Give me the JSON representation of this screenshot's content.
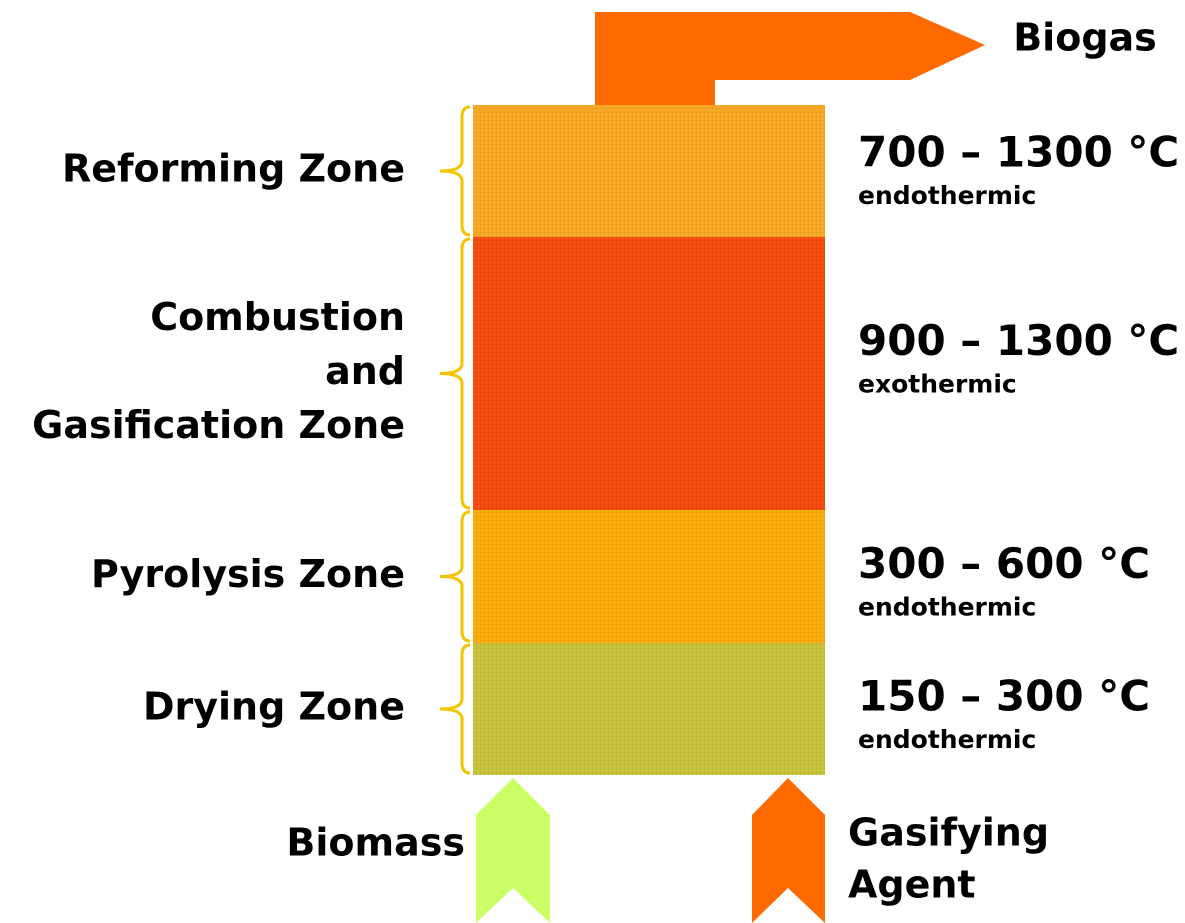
{
  "zones": [
    {
      "label_lines": [
        "Reforming Zone"
      ],
      "temperature": "700 – 1300 °C",
      "reaction": "endothermic",
      "color": "#f5a623"
    },
    {
      "label_lines": [
        "Combustion",
        "and",
        "Gasification Zone"
      ],
      "temperature": "900 – 1300 °C",
      "reaction": "exothermic",
      "color": "#f34a0e"
    },
    {
      "label_lines": [
        "Pyrolysis Zone"
      ],
      "temperature": "300 – 600 °C",
      "reaction": "endothermic",
      "color": "#f9ab0a"
    },
    {
      "label_lines": [
        "Drying Zone"
      ],
      "temperature": "150 – 300 °C",
      "reaction": "endothermic",
      "color": "#c8c23a"
    }
  ],
  "output": {
    "label": "Biogas"
  },
  "inputs": [
    {
      "label_lines": [
        "Biomass"
      ]
    },
    {
      "label_lines": [
        "Gasifying",
        "Agent"
      ]
    }
  ]
}
